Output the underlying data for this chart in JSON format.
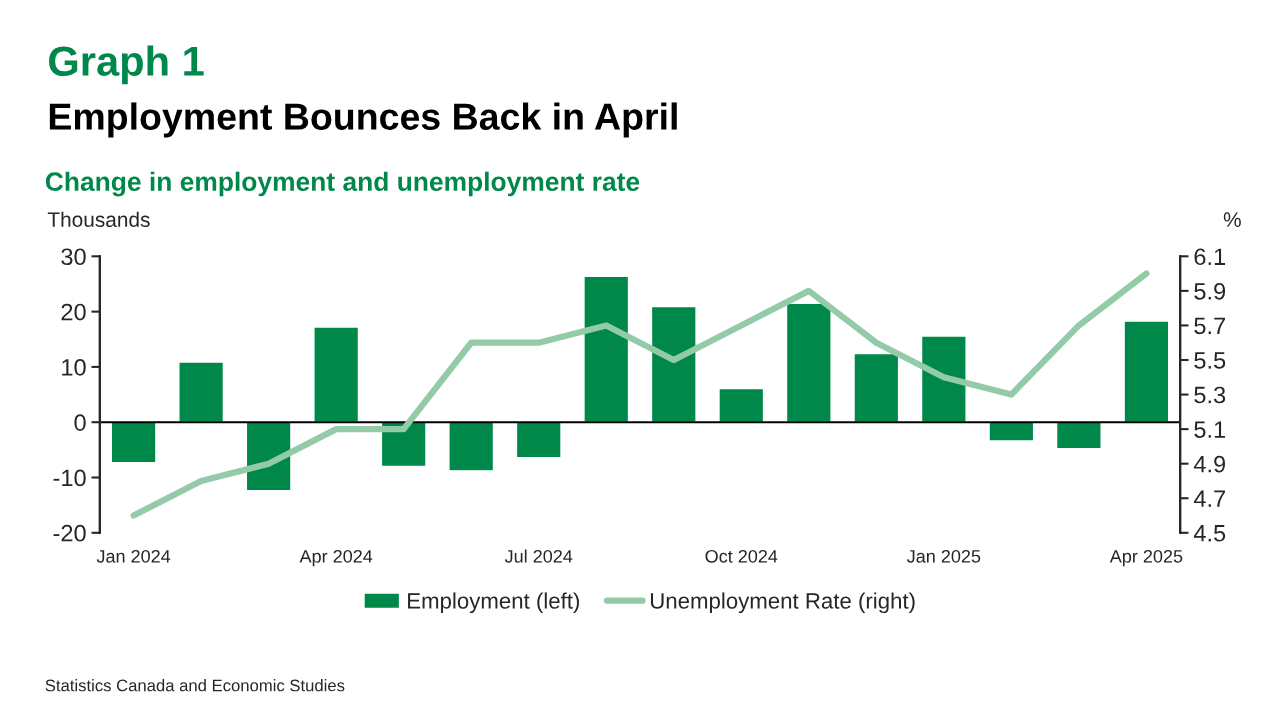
{
  "chart_data": {
    "type": "bar",
    "title": "Graph 1",
    "subtitle": "Employment Bounces Back in April",
    "annotations": [
      "Change in employment and unemployment rate",
      "Statistics Canada and Economic Studies"
    ],
    "ylabel": "Thousands",
    "y2label": "%",
    "categories": [
      "Jan 2024",
      null,
      null,
      "Apr 2024",
      null,
      null,
      "Jul 2024",
      null,
      null,
      "Oct 2024",
      null,
      null,
      "Jan 2025",
      null,
      null,
      "Apr 2025"
    ],
    "series": [
      {
        "name": "Employment (left)",
        "type": "bar",
        "color": "#00874a",
        "values": [
          -7.3,
          10.9,
          -12.4,
          17.2,
          -8.0,
          -8.8,
          -6.4,
          26.4,
          20.9,
          6.1,
          21.5,
          12.4,
          15.6,
          -3.4,
          -4.8,
          18.3
        ]
      },
      {
        "name": "Unemployment Rate (right)",
        "type": "line",
        "axis": "y2",
        "color": "#93cba8",
        "marker": "none",
        "line_style": "solid",
        "values": [
          4.6,
          4.8,
          4.9,
          5.1,
          5.1,
          5.6,
          5.6,
          5.7,
          5.5,
          5.7,
          5.9,
          5.6,
          5.4,
          5.3,
          5.7,
          6.0
        ]
      }
    ],
    "ylim": [
      -20,
      30
    ],
    "yticks": [
      -20,
      -10,
      0,
      10,
      20,
      30
    ],
    "y2lim": [
      4.5,
      6.1
    ],
    "y2ticks": [
      {
        "value": 4.5,
        "label": "4.5"
      },
      {
        "value": 4.7,
        "label": "4.7"
      },
      {
        "value": 4.9,
        "label": "4.9"
      },
      {
        "value": 5.1,
        "label": "5.1"
      },
      {
        "value": 5.3,
        "label": "5.3"
      },
      {
        "value": 5.5,
        "label": "5.5"
      },
      {
        "value": 5.7,
        "label": "5.7"
      },
      {
        "value": 5.9,
        "label": "5.9"
      },
      {
        "value": 6.1,
        "label": "6.1"
      }
    ],
    "ref_lines": [
      {
        "axis": "y",
        "value": 0,
        "color": "#000000"
      }
    ],
    "grid": false,
    "legend": "bottom"
  }
}
